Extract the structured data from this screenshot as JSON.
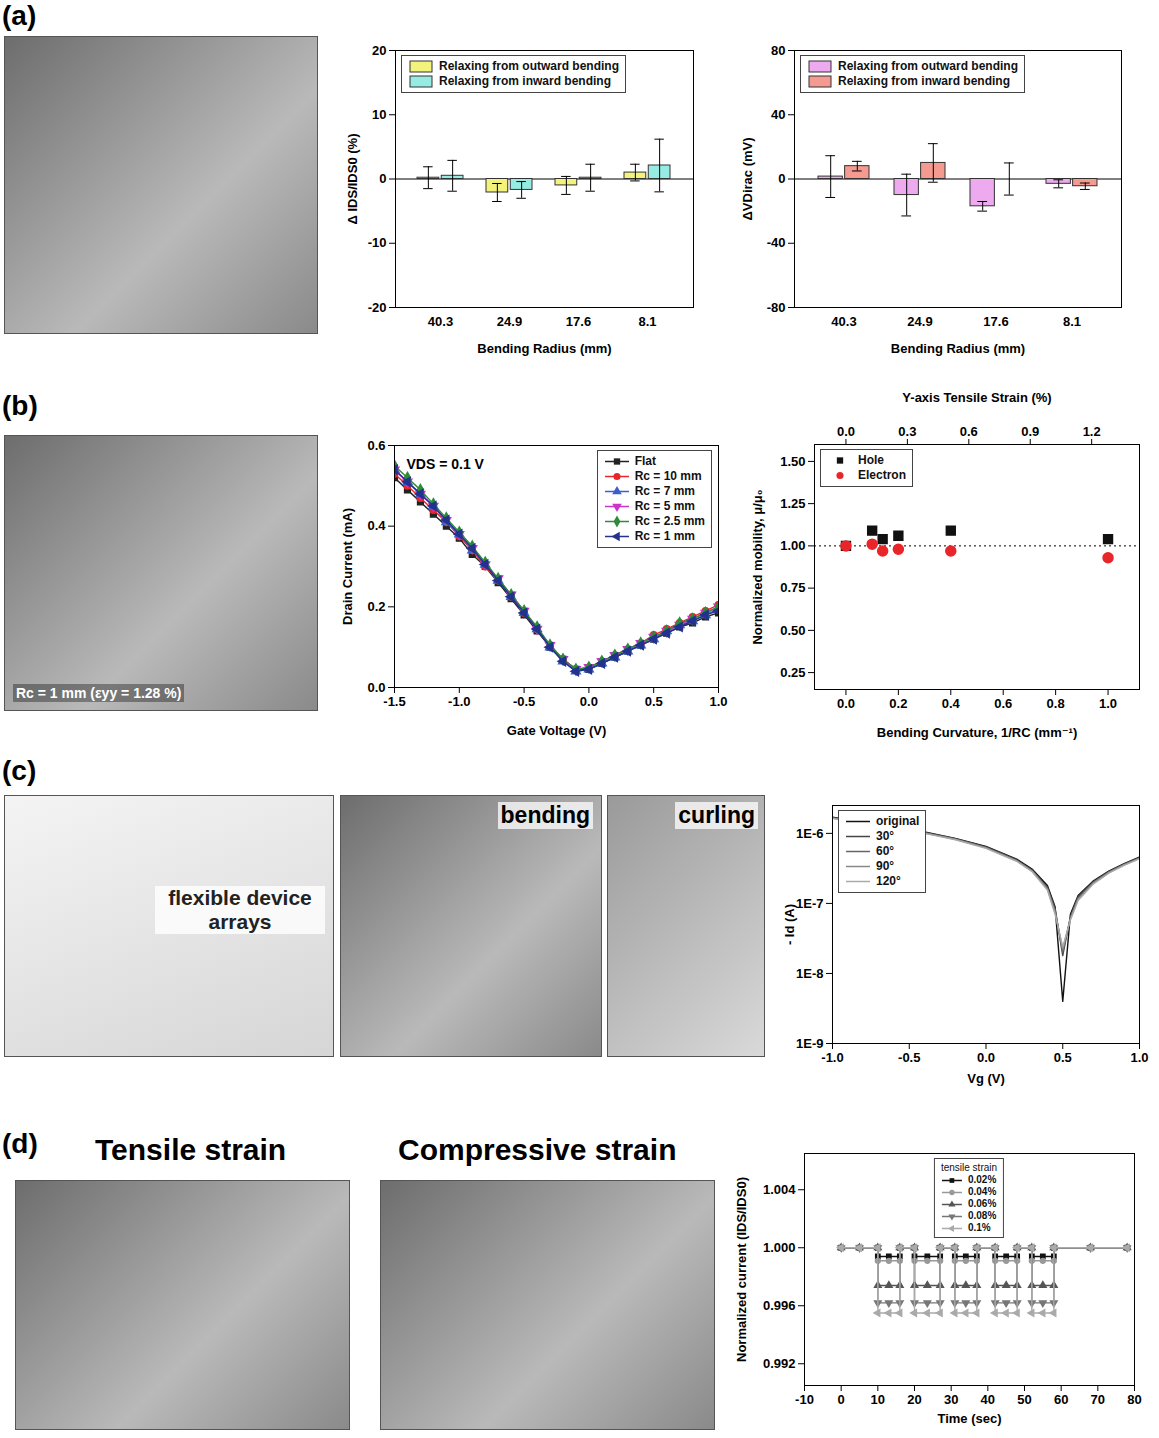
{
  "panels": [
    {
      "label": "(a)",
      "texts": []
    },
    {
      "label": "(b)",
      "texts": [
        "Rc = 1 mm (εyy = 1.28 %)"
      ]
    },
    {
      "label": "(c)",
      "texts": [
        "flexible device arrays",
        "bending",
        "curling"
      ]
    },
    {
      "label": "(d)",
      "texts": [
        "Tensile strain",
        "Compressive strain"
      ]
    }
  ],
  "chart_data": [
    {
      "type": "bar",
      "categories": [
        "40.3",
        "24.9",
        "17.6",
        "8.1"
      ],
      "x_label": "Bending Radius (mm)",
      "y_label": "Δ IDS/IDS0 (%)",
      "ylim": [
        -20,
        20
      ],
      "yticks": [
        -20,
        -10,
        0,
        10,
        20
      ],
      "legend": "top-left",
      "series": [
        {
          "name": "Relaxing from outward bending",
          "color": "#f2f27c",
          "values": [
            0.2,
            -2.1,
            -1.0,
            1.0
          ],
          "errors": [
            1.7,
            1.4,
            1.4,
            1.3
          ]
        },
        {
          "name": "Relaxing from inward bending",
          "color": "#96ece2",
          "values": [
            0.5,
            -1.7,
            0.2,
            2.1
          ],
          "errors": [
            2.4,
            1.3,
            2.1,
            4.1
          ]
        }
      ]
    },
    {
      "type": "bar",
      "categories": [
        "40.3",
        "24.9",
        "17.6",
        "8.1"
      ],
      "x_label": "Bending Radius (mm)",
      "y_label": "ΔVDirac (mV)",
      "ylim": [
        -80,
        80
      ],
      "yticks": [
        -80,
        -40,
        0,
        40,
        80
      ],
      "legend": "top-left",
      "series": [
        {
          "name": "Relaxing from outward bending",
          "color": "#eeaaee",
          "values": [
            1.5,
            -10,
            -17,
            -3
          ],
          "errors": [
            13,
            13,
            3,
            2.5
          ]
        },
        {
          "name": "Relaxing from inward bending",
          "color": "#f49a90",
          "values": [
            8,
            10,
            0,
            -4.5
          ],
          "errors": [
            3,
            12,
            10,
            2
          ]
        }
      ]
    },
    {
      "type": "line",
      "x_label": "Gate Voltage (V)",
      "y_label": "Drain Current (mA)",
      "annotations": [
        "VDS = 0.1 V"
      ],
      "legend": "top-right",
      "xlim": [
        -1.5,
        1.0
      ],
      "xticks": [
        -1.5,
        {
          "value": -1,
          "label": "-1.0"
        },
        -0.5,
        {
          "value": 0,
          "label": "0.0"
        },
        0.5,
        {
          "value": 1,
          "label": "1.0"
        }
      ],
      "ylim": [
        0,
        0.6
      ],
      "yticks": [
        {
          "value": 0,
          "label": "0.0"
        },
        0.2,
        0.4,
        0.6
      ],
      "x": [
        -1.5,
        -1.4,
        -1.3,
        -1.2,
        -1.1,
        -1.0,
        -0.9,
        -0.8,
        -0.7,
        -0.6,
        -0.5,
        -0.4,
        -0.3,
        -0.2,
        -0.1,
        0.0,
        0.1,
        0.2,
        0.3,
        0.4,
        0.5,
        0.6,
        0.7,
        0.8,
        0.9,
        1.0
      ],
      "series": [
        {
          "name": "Flat",
          "color": "#222222",
          "marker": "square",
          "values": [
            0.52,
            0.49,
            0.46,
            0.43,
            0.4,
            0.37,
            0.33,
            0.3,
            0.26,
            0.22,
            0.18,
            0.14,
            0.1,
            0.07,
            0.045,
            0.045,
            0.06,
            0.075,
            0.09,
            0.105,
            0.12,
            0.135,
            0.15,
            0.16,
            0.175,
            0.185
          ]
        },
        {
          "name": "Rc = 10 mm",
          "color": "#e8262a",
          "marker": "circle",
          "values": [
            0.53,
            0.5,
            0.47,
            0.44,
            0.41,
            0.375,
            0.34,
            0.3,
            0.265,
            0.225,
            0.185,
            0.145,
            0.105,
            0.07,
            0.045,
            0.05,
            0.065,
            0.08,
            0.095,
            0.11,
            0.13,
            0.145,
            0.16,
            0.175,
            0.19,
            0.205
          ]
        },
        {
          "name": "Rc = 7 mm",
          "color": "#3a5fcd",
          "marker": "triangle",
          "values": [
            0.54,
            0.51,
            0.48,
            0.45,
            0.41,
            0.38,
            0.34,
            0.305,
            0.265,
            0.225,
            0.185,
            0.145,
            0.1,
            0.065,
            0.04,
            0.045,
            0.06,
            0.075,
            0.09,
            0.105,
            0.12,
            0.14,
            0.155,
            0.165,
            0.18,
            0.195
          ]
        },
        {
          "name": "Rc = 5 mm",
          "color": "#cc33cc",
          "marker": "triangle-down",
          "values": [
            0.54,
            0.51,
            0.48,
            0.45,
            0.415,
            0.38,
            0.345,
            0.305,
            0.27,
            0.23,
            0.19,
            0.145,
            0.105,
            0.07,
            0.045,
            0.05,
            0.065,
            0.08,
            0.095,
            0.11,
            0.125,
            0.14,
            0.155,
            0.17,
            0.185,
            0.2
          ]
        },
        {
          "name": "Rc = 2.5 mm",
          "color": "#2e8b3a",
          "marker": "diamond",
          "values": [
            0.55,
            0.52,
            0.49,
            0.455,
            0.42,
            0.385,
            0.35,
            0.31,
            0.27,
            0.23,
            0.19,
            0.15,
            0.105,
            0.07,
            0.045,
            0.05,
            0.065,
            0.08,
            0.095,
            0.11,
            0.125,
            0.14,
            0.16,
            0.17,
            0.185,
            0.2
          ]
        },
        {
          "name": "Rc = 1 mm",
          "color": "#22338f",
          "marker": "triangle-left",
          "values": [
            0.54,
            0.51,
            0.48,
            0.45,
            0.415,
            0.38,
            0.345,
            0.305,
            0.265,
            0.225,
            0.185,
            0.145,
            0.1,
            0.065,
            0.04,
            0.045,
            0.06,
            0.075,
            0.09,
            0.105,
            0.12,
            0.135,
            0.15,
            0.165,
            0.18,
            0.19
          ]
        }
      ]
    },
    {
      "type": "scatter",
      "x_label": "Bending Curvature, 1/RC (mm⁻¹)",
      "y_label": "Normalized mobility, μ/μ₀",
      "x2_label": "Y-axis Tensile Strain (%)",
      "legend": "top-left",
      "xlim": [
        -0.12,
        1.12
      ],
      "xticks": [
        {
          "value": 0,
          "label": "0.0"
        },
        0.2,
        0.4,
        0.6,
        0.8,
        {
          "value": 1,
          "label": "1.0"
        }
      ],
      "x2lim": [
        -0.1536,
        1.4336
      ],
      "x2ticks": [
        {
          "value": 0,
          "label": "0.0"
        },
        0.3,
        0.6,
        0.9,
        1.2
      ],
      "ylim": [
        0.15,
        1.6
      ],
      "yticks": [
        0.25,
        {
          "value": 0.5,
          "label": "0.50"
        },
        0.75,
        {
          "value": 1,
          "label": "1.00"
        },
        1.25,
        {
          "value": 1.5,
          "label": "1.50"
        }
      ],
      "reference_y": 1,
      "series": [
        {
          "name": "Hole",
          "color": "#111111",
          "marker": "square",
          "x": [
            0,
            0.1,
            0.14,
            0.2,
            0.4,
            1.0
          ],
          "values": [
            1.0,
            1.09,
            1.04,
            1.06,
            1.09,
            1.04
          ]
        },
        {
          "name": "Electron",
          "color": "#e8262a",
          "marker": "circle",
          "x": [
            0,
            0.1,
            0.14,
            0.2,
            0.4,
            1.0
          ],
          "values": [
            1.0,
            1.01,
            0.97,
            0.98,
            0.97,
            0.93
          ]
        }
      ]
    },
    {
      "type": "line",
      "log": "y",
      "x_label": "Vg (V)",
      "y_label": "- Id (A)",
      "legend": "top-left",
      "xlim": [
        -1,
        1
      ],
      "xticks": [
        {
          "value": -1,
          "label": "-1.0"
        },
        -0.5,
        {
          "value": 0,
          "label": "0.0"
        },
        0.5,
        {
          "value": 1,
          "label": "1.0"
        }
      ],
      "ylim": [
        1e-09,
        2.5e-06
      ],
      "yticks": [
        {
          "value": 1e-09,
          "label": "1E-9"
        },
        {
          "value": 1e-08,
          "label": "1E-8"
        },
        {
          "value": 1e-07,
          "label": "1E-7"
        },
        {
          "value": 1e-06,
          "label": "1E-6"
        }
      ],
      "x": [
        -1,
        -0.8,
        -0.6,
        -0.4,
        -0.2,
        0,
        0.2,
        0.3,
        0.4,
        0.45,
        0.5,
        0.55,
        0.6,
        0.7,
        0.8,
        0.9,
        1
      ],
      "series": [
        {
          "name": "original",
          "color": "#111111",
          "values": [
            1.7e-06,
            1.45e-06,
            1.25e-06,
            1.05e-06,
            8.5e-07,
            6.5e-07,
            4.3e-07,
            3.1e-07,
            1.8e-07,
            9e-08,
            4e-09,
            7e-08,
            1.3e-07,
            2.1e-07,
            2.9e-07,
            3.7e-07,
            4.6e-07
          ]
        },
        {
          "name": "30°",
          "color": "#444444",
          "values": [
            1.68e-06,
            1.43e-06,
            1.23e-06,
            1.03e-06,
            8.4e-07,
            6.4e-07,
            4.2e-07,
            3e-07,
            1.7e-07,
            8.5e-08,
            1.8e-08,
            6.5e-08,
            1.25e-07,
            2.05e-07,
            2.85e-07,
            3.65e-07,
            4.5e-07
          ]
        },
        {
          "name": "60°",
          "color": "#666666",
          "values": [
            1.66e-06,
            1.42e-06,
            1.22e-06,
            1.02e-06,
            8.3e-07,
            6.3e-07,
            4.1e-07,
            2.95e-07,
            1.65e-07,
            8e-08,
            2e-08,
            6.3e-08,
            1.2e-07,
            2e-07,
            2.8e-07,
            3.6e-07,
            4.45e-07
          ]
        },
        {
          "name": "90°",
          "color": "#888888",
          "values": [
            1.65e-06,
            1.41e-06,
            1.21e-06,
            1.01e-06,
            8.2e-07,
            6.2e-07,
            4.05e-07,
            2.9e-07,
            1.6e-07,
            7.5e-08,
            2.2e-08,
            6e-08,
            1.15e-07,
            1.95e-07,
            2.75e-07,
            3.55e-07,
            4.4e-07
          ]
        },
        {
          "name": "120°",
          "color": "#aaaaaa",
          "values": [
            1.64e-06,
            1.4e-06,
            1.2e-06,
            1e-06,
            8.1e-07,
            6.1e-07,
            4e-07,
            2.85e-07,
            1.55e-07,
            7e-08,
            2.4e-08,
            5.8e-08,
            1.1e-07,
            1.9e-07,
            2.7e-07,
            3.5e-07,
            4.35e-07
          ]
        }
      ]
    },
    {
      "type": "line",
      "x_label": "Time (sec)",
      "y_label": "Normalized current (IDS/IDS0)",
      "legend": "top",
      "legend_title": "tensile strain",
      "xlim": [
        -10,
        80
      ],
      "xticks": [
        -10,
        0,
        10,
        20,
        30,
        40,
        50,
        60,
        70,
        80
      ],
      "ylim": [
        0.9905,
        1.0065
      ],
      "yticks": [
        0.992,
        0.996,
        {
          "value": 1,
          "label": "1.000"
        },
        1.004
      ],
      "x": [
        0,
        5,
        10,
        10,
        13,
        16,
        16,
        20,
        20,
        23.5,
        27,
        27,
        31,
        31,
        34,
        37,
        37,
        42,
        42,
        45,
        48,
        48,
        52,
        52,
        55,
        58,
        58,
        68,
        78
      ],
      "series": [
        {
          "name": "0.02%",
          "color": "#111111",
          "marker": "square",
          "values": [
            1,
            1,
            1,
            0.9994,
            0.9994,
            0.9994,
            1,
            1,
            0.9994,
            0.9994,
            0.9994,
            1,
            1,
            0.9994,
            0.9994,
            0.9994,
            1,
            1,
            0.9994,
            0.9994,
            0.9994,
            1,
            1,
            0.9994,
            0.9994,
            0.9994,
            1,
            1,
            1
          ]
        },
        {
          "name": "0.04%",
          "color": "#999999",
          "marker": "circle",
          "values": [
            1,
            1,
            1,
            0.9991,
            0.9991,
            0.9991,
            1,
            1,
            0.9991,
            0.9991,
            0.9991,
            1,
            1,
            0.9991,
            0.9991,
            0.9991,
            1,
            1,
            0.9991,
            0.9991,
            0.9991,
            1,
            1,
            0.9991,
            0.9991,
            0.9991,
            1,
            1,
            1
          ]
        },
        {
          "name": "0.06%",
          "color": "#555555",
          "marker": "triangle",
          "values": [
            1,
            1,
            1,
            0.9974,
            0.9974,
            0.9974,
            1,
            1,
            0.9974,
            0.9974,
            0.9974,
            1,
            1,
            0.9974,
            0.9974,
            0.9974,
            1,
            1,
            0.9974,
            0.9974,
            0.9974,
            1,
            1,
            0.9974,
            0.9974,
            0.9974,
            1,
            1,
            1
          ]
        },
        {
          "name": "0.08%",
          "color": "#777777",
          "marker": "triangle-down",
          "values": [
            1,
            1,
            1,
            0.9962,
            0.9962,
            0.9962,
            1,
            1,
            0.9962,
            0.9962,
            0.9962,
            1,
            1,
            0.9962,
            0.9962,
            0.9962,
            1,
            1,
            0.9962,
            0.9962,
            0.9962,
            1,
            1,
            0.9962,
            0.9962,
            0.9962,
            1,
            1,
            1
          ]
        },
        {
          "name": "0.1%",
          "color": "#aaaaaa",
          "marker": "triangle-left",
          "values": [
            1,
            1,
            1,
            0.9955,
            0.9955,
            0.9955,
            1,
            1,
            0.9955,
            0.9955,
            0.9955,
            1,
            1,
            0.9955,
            0.9955,
            0.9955,
            1,
            1,
            0.9955,
            0.9955,
            0.9955,
            1,
            1,
            0.9955,
            0.9955,
            0.9955,
            1,
            1,
            1
          ]
        }
      ]
    }
  ]
}
